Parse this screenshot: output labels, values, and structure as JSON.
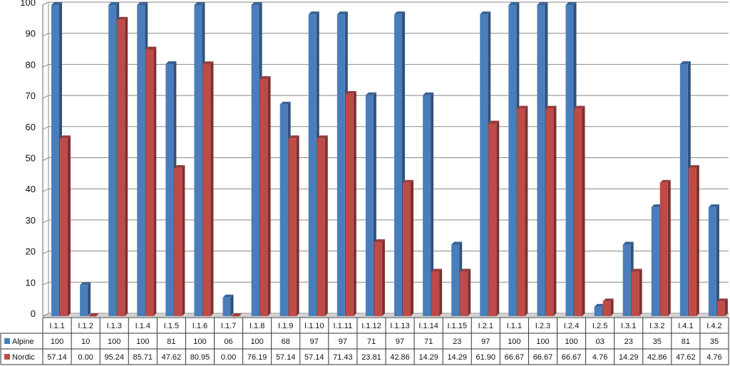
{
  "chart_data": {
    "type": "bar",
    "title": "",
    "xlabel": "",
    "ylabel": "",
    "ylim": [
      0,
      100
    ],
    "yticks": [
      0,
      10,
      20,
      30,
      40,
      50,
      60,
      70,
      80,
      90,
      100
    ],
    "grid": true,
    "legend": "data-table-left",
    "categories": [
      "I.1.1",
      "I.1.2",
      "I.1.3",
      "I.1.4",
      "I.1.5",
      "I.1.6",
      "I.1.7",
      "I.1.8",
      "I.1.9",
      "I.1.10",
      "I.1.11",
      "I.1.12",
      "I.1.13",
      "I.1.14",
      "I.1.15",
      "I.2.1",
      "I.1.1",
      "I.2.3",
      "I.2.4",
      "I.2.5",
      "I.3.1",
      "I.3.2",
      "I.4.1",
      "I.4.2"
    ],
    "series": [
      {
        "name": "Alpine",
        "color": "#4a7ebb",
        "values": [
          100,
          10,
          100,
          100,
          81,
          100,
          6,
          100,
          68,
          97,
          97,
          71,
          97,
          71,
          23,
          97,
          100,
          100,
          100,
          3,
          23,
          35,
          81,
          35
        ],
        "labels": [
          "100",
          "10",
          "100",
          "100",
          "81",
          "100",
          "06",
          "100",
          "68",
          "97",
          "97",
          "71",
          "97",
          "71",
          "23",
          "97",
          "100",
          "100",
          "100",
          "03",
          "23",
          "35",
          "81",
          "35"
        ]
      },
      {
        "name": "Nordic",
        "color": "#be4b48",
        "values": [
          57.14,
          0.0,
          95.24,
          85.71,
          47.62,
          80.95,
          0.0,
          76.19,
          57.14,
          57.14,
          71.43,
          23.81,
          42.86,
          14.29,
          14.29,
          61.9,
          66.67,
          66.67,
          66.67,
          4.76,
          14.29,
          42.86,
          47.62,
          4.76
        ],
        "labels": [
          "57.14",
          "0.00",
          "95.24",
          "85.71",
          "47.62",
          "80.95",
          "0.00",
          "76.19",
          "57.14",
          "57.14",
          "71.43",
          "23.81",
          "42.86",
          "14.29",
          "14.29",
          "61.90",
          "66.67",
          "66.67",
          "66.67",
          "4.76",
          "14.29",
          "42.86",
          "47.62",
          "4.76"
        ]
      }
    ]
  }
}
